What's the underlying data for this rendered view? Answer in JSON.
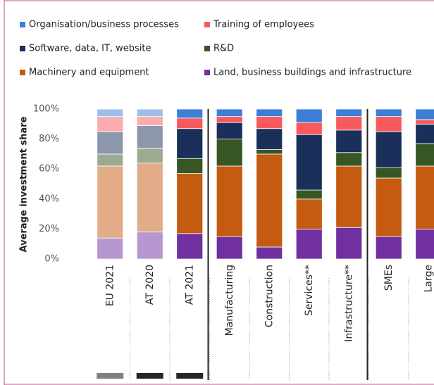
{
  "chart_data": {
    "type": "stacked_bar",
    "ylabel": "Average investment share",
    "categories": [
      "EU 2021",
      "AT 2020",
      "AT 2021",
      "Manufacturing",
      "Construction",
      "Services**",
      "Infrastructure**",
      "SMEs",
      "Large"
    ],
    "bar_opacity": [
      0.5,
      0.5,
      1,
      1,
      1,
      1,
      1,
      1,
      1
    ],
    "ylim": [
      0,
      100
    ],
    "yticks": [
      {
        "value": 0,
        "label": "0%"
      },
      {
        "value": 20,
        "label": "20%"
      },
      {
        "value": 40,
        "label": "40%"
      },
      {
        "value": 60,
        "label": "60%"
      },
      {
        "value": 80,
        "label": "80%"
      },
      {
        "value": 100,
        "label": "100%"
      }
    ],
    "series": [
      {
        "name": "Land, business buildings and infrastructure",
        "color": "#7030a0",
        "values": [
          14,
          18,
          17,
          15,
          8,
          20,
          21,
          15,
          20
        ]
      },
      {
        "name": "Machinery and equipment",
        "color": "#c55a11",
        "values": [
          48,
          46,
          40,
          47,
          62,
          20,
          41,
          39,
          42
        ]
      },
      {
        "name": "R&D",
        "color": "#375623",
        "values": [
          8,
          10,
          10,
          18,
          3,
          6,
          9,
          7,
          15
        ]
      },
      {
        "name": "Software, data, IT, website",
        "color": "#1a2f5a",
        "values": [
          15,
          15,
          20,
          11,
          14,
          37,
          15,
          24,
          13
        ]
      },
      {
        "name": "Training of employees",
        "color": "#f8595d",
        "values": [
          10,
          6,
          7,
          4,
          8,
          8,
          9,
          10,
          3
        ]
      },
      {
        "name": "Organisation/business processes",
        "color": "#3d7fd6",
        "values": [
          5,
          5,
          6,
          5,
          5,
          9,
          5,
          5,
          7
        ]
      }
    ]
  }
}
